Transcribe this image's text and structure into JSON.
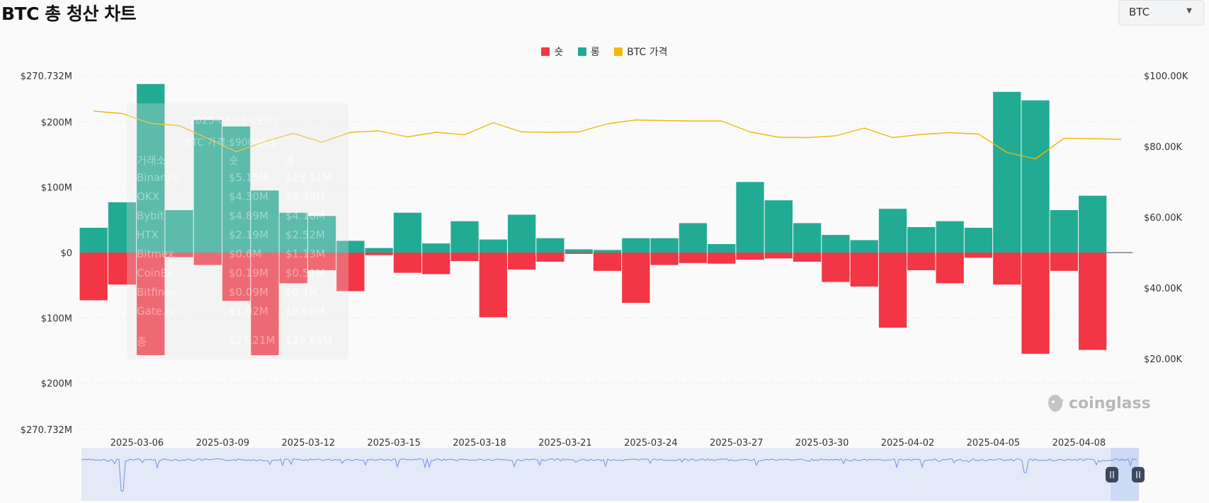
{
  "header": {
    "title": "BTC 총 청산 차트"
  },
  "selector": {
    "value": "BTC"
  },
  "legend": [
    {
      "label": "숏",
      "color": "#f23645"
    },
    {
      "label": "롱",
      "color": "#22ab94"
    },
    {
      "label": "BTC 가격",
      "color": "#f0b90b"
    }
  ],
  "watermark": "coinglass",
  "tooltip": {
    "time": "2025-03-05 09:00",
    "price_label": "BTC 가격:$90066.1",
    "header": [
      "거래소",
      "숏",
      "롱"
    ],
    "rows": [
      [
        "Binance",
        "$5.15M",
        "$13.51M"
      ],
      [
        "OKX",
        "$4.30M",
        "$6.38M"
      ],
      [
        "Bybit",
        "$4.89M",
        "$4.18M"
      ],
      [
        "HTX",
        "$2.19M",
        "$2.52M"
      ],
      [
        "Bitmex",
        "$0.6M",
        "$1.13M"
      ],
      [
        "CoinEx",
        "$0.19M",
        "$0.51M"
      ],
      [
        "Bitfinex",
        "$0.09M",
        "$0.1M"
      ],
      [
        "Gate.io",
        "$1.02M",
        "$0.68M"
      ]
    ],
    "total": [
      "총",
      "$27.21M",
      "$29.65M"
    ]
  },
  "chart_data": {
    "type": "bar",
    "categories": [
      "2025-03-05",
      "2025-03-06",
      "2025-03-07",
      "2025-03-08",
      "2025-03-09",
      "2025-03-10",
      "2025-03-11",
      "2025-03-12",
      "2025-03-13",
      "2025-03-14",
      "2025-03-15",
      "2025-03-16",
      "2025-03-17",
      "2025-03-18",
      "2025-03-19",
      "2025-03-20",
      "2025-03-21",
      "2025-03-22",
      "2025-03-23",
      "2025-03-24",
      "2025-03-25",
      "2025-03-26",
      "2025-03-27",
      "2025-03-28",
      "2025-03-29",
      "2025-03-30",
      "2025-03-31",
      "2025-04-01",
      "2025-04-02",
      "2025-04-03",
      "2025-04-04",
      "2025-04-05",
      "2025-04-06",
      "2025-04-07",
      "2025-04-08",
      "2025-04-09",
      "2025-04-10"
    ],
    "x_tick_labels": [
      "2025-03-06",
      "2025-03-09",
      "2025-03-12",
      "2025-03-15",
      "2025-03-18",
      "2025-03-21",
      "2025-03-24",
      "2025-03-27",
      "2025-03-30",
      "2025-04-02",
      "2025-04-05",
      "2025-04-08"
    ],
    "series": [
      {
        "name": "롱",
        "values": [
          38,
          77,
          258,
          65,
          203,
          193,
          95,
          61,
          56,
          18,
          7,
          61,
          14,
          48,
          20,
          58,
          22,
          5,
          4,
          22,
          22,
          45,
          13,
          108,
          80,
          45,
          27,
          19,
          67,
          39,
          48,
          38,
          246,
          233,
          65,
          87,
          0
        ]
      },
      {
        "name": "숏",
        "values": [
          -73,
          -49,
          -157,
          -7,
          -19,
          -74,
          -157,
          -47,
          -27,
          -59,
          -4,
          -31,
          -33,
          -13,
          -99,
          -26,
          -14,
          -2,
          -28,
          -77,
          -19,
          -16,
          -17,
          -11,
          -9,
          -14,
          -45,
          -52,
          -115,
          -27,
          -47,
          -8,
          -49,
          -155,
          -28,
          -149,
          0
        ]
      },
      {
        "name": "BTC 가격",
        "axis": "right",
        "values": [
          90000,
          89300,
          86500,
          85900,
          82300,
          78500,
          81400,
          83700,
          81200,
          84000,
          84400,
          82700,
          84000,
          83300,
          86700,
          84100,
          84000,
          84100,
          86400,
          87500,
          87300,
          87200,
          87200,
          84100,
          82600,
          82500,
          83000,
          85200,
          82500,
          83400,
          83900,
          83500,
          78300,
          76500,
          82300,
          82200,
          82000
        ]
      }
    ],
    "y_left": {
      "ticks": [
        "$270.732M",
        "$200M",
        "$100M",
        "$0",
        "$100M",
        "$200M",
        "$270.732M"
      ],
      "range": [
        -270.732,
        270.732
      ],
      "unit": "M USD"
    },
    "y_right": {
      "ticks": [
        "$100.00K",
        "$80.00K",
        "$60.00K",
        "$40.00K",
        "$20.00K"
      ],
      "range": [
        0,
        100000
      ]
    },
    "grid": true,
    "legend_position": "top-center"
  }
}
